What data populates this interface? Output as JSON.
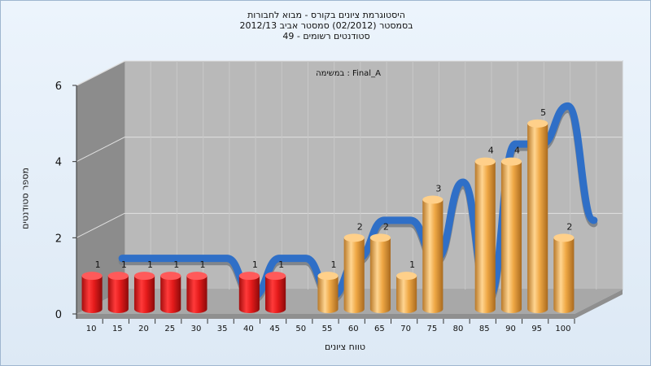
{
  "chart_data": {
    "type": "bar",
    "title_lines": [
      "היסטוגרמת ציונים בקורס - מבוא לחבורות",
      "בסמסטר  (02/2012)  סמסטר אביב 2012/13",
      "סטודנטים רשומים - 49"
    ],
    "panel_label": "במשימה : Final_A",
    "xlabel": "טווח ציונים",
    "ylabel": "מספר סטודנטים",
    "categories": [
      "10",
      "15",
      "20",
      "25",
      "30",
      "35",
      "40",
      "45",
      "50",
      "55",
      "60",
      "65",
      "70",
      "75",
      "80",
      "85",
      "90",
      "95",
      "100"
    ],
    "values": [
      1,
      1,
      1,
      1,
      1,
      0,
      1,
      1,
      0,
      1,
      2,
      2,
      1,
      3,
      0,
      4,
      4,
      5,
      2
    ],
    "bar_colors": [
      "red",
      "red",
      "red",
      "red",
      "red",
      "red",
      "red",
      "red",
      "red",
      "orange",
      "orange",
      "orange",
      "orange",
      "orange",
      "orange",
      "orange",
      "orange",
      "orange",
      "orange"
    ],
    "data_labels": [
      "1",
      "1",
      "1",
      "1",
      "1",
      "",
      "1",
      "1",
      "",
      "1",
      "2",
      "2",
      "1",
      "3",
      "",
      "4",
      "4",
      "5",
      "2"
    ],
    "yticks": [
      "0",
      "2",
      "4",
      "6"
    ],
    "ylim": [
      0,
      6
    ],
    "grid": true,
    "trend_series": "smoothed ribbon following the counts"
  },
  "colors": {
    "red_bar": "#e51b1b",
    "orange_bar": "#efa845",
    "ribbon": "#2f6fc7",
    "ribbon_back": "#7a7f86",
    "back_wall": "#b9b9b9",
    "side_wall": "#8c8c8c",
    "floor": "#a8a8a8"
  }
}
